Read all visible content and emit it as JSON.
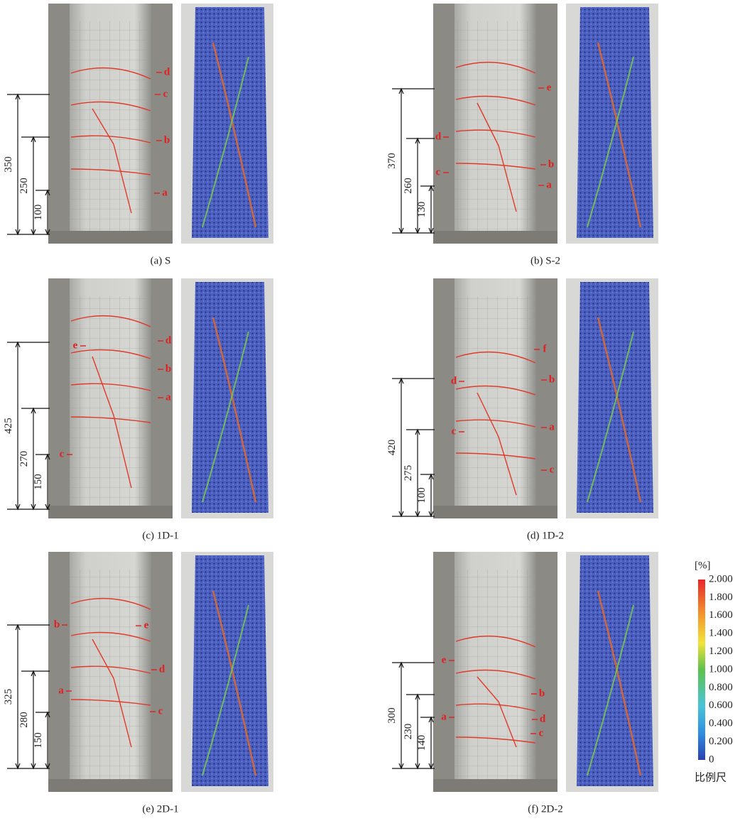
{
  "panels": [
    {
      "caption": "(a) S",
      "dimensions": [
        "350",
        "250",
        "100"
      ],
      "crack_labels": [
        "d",
        "c",
        "b",
        "a"
      ]
    },
    {
      "caption": "(b) S-2",
      "dimensions": [
        "370",
        "260",
        "130"
      ],
      "crack_labels": [
        "e",
        "d",
        "b",
        "c",
        "a"
      ]
    },
    {
      "caption": "(c) 1D-1",
      "dimensions": [
        "425",
        "270",
        "150"
      ],
      "crack_labels": [
        "d",
        "e",
        "b",
        "a",
        "c"
      ]
    },
    {
      "caption": "(d) 1D-2",
      "dimensions": [
        "420",
        "275",
        "100"
      ],
      "crack_labels": [
        "f",
        "d",
        "b",
        "c",
        "a",
        "c"
      ]
    },
    {
      "caption": "(e) 2D-1",
      "dimensions": [
        "325",
        "280",
        "150"
      ],
      "crack_labels": [
        "b",
        "e",
        "d",
        "a",
        "c"
      ]
    },
    {
      "caption": "(f) 2D-2",
      "dimensions": [
        "300",
        "230",
        "140"
      ],
      "crack_labels": [
        "e",
        "b",
        "a",
        "d",
        "c"
      ]
    }
  ],
  "scale_bar": {
    "unit": "[%]",
    "ticks": [
      "2.000",
      "1.800",
      "1.600",
      "1.400",
      "1.200",
      "1.000",
      "0.800",
      "0.600",
      "0.400",
      "0.200",
      "0"
    ],
    "label": "比例尺"
  }
}
